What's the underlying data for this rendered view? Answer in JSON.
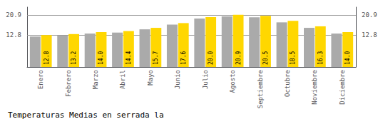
{
  "chart_data": {
    "type": "bar",
    "title": "Temperaturas Medias en serrada la",
    "categories": [
      "Enero",
      "Febrero",
      "Marzo",
      "Abril",
      "Mayo",
      "Junio",
      "Julio",
      "Agosto",
      "Septiembre",
      "Octubre",
      "Noviembre",
      "Diciembre"
    ],
    "series": [
      {
        "color": "#AAAAAA",
        "values": [
          12.2,
          12.6,
          13.4,
          13.8,
          15.1,
          17.0,
          19.4,
          20.3,
          19.9,
          17.9,
          15.7,
          13.4
        ]
      },
      {
        "color": "#FFD700",
        "data_labels": true,
        "values": [
          12.8,
          13.2,
          14.0,
          14.4,
          15.7,
          17.6,
          20.0,
          20.9,
          20.5,
          18.5,
          16.3,
          14.0
        ],
        "value_labels": [
          "12.8",
          "13.2",
          "14.0",
          "14.4",
          "15.7",
          "17.6",
          "20.0",
          "20.9",
          "20.5",
          "18.5",
          "16.3",
          "14.0"
        ]
      }
    ],
    "ylim": [
      0.0,
      24.0
    ],
    "yticks": [
      12.8,
      20.9
    ],
    "y2lim": [
      0.0,
      24.0
    ],
    "y2ticks": [
      12.8,
      20.9
    ],
    "grid": true
  }
}
